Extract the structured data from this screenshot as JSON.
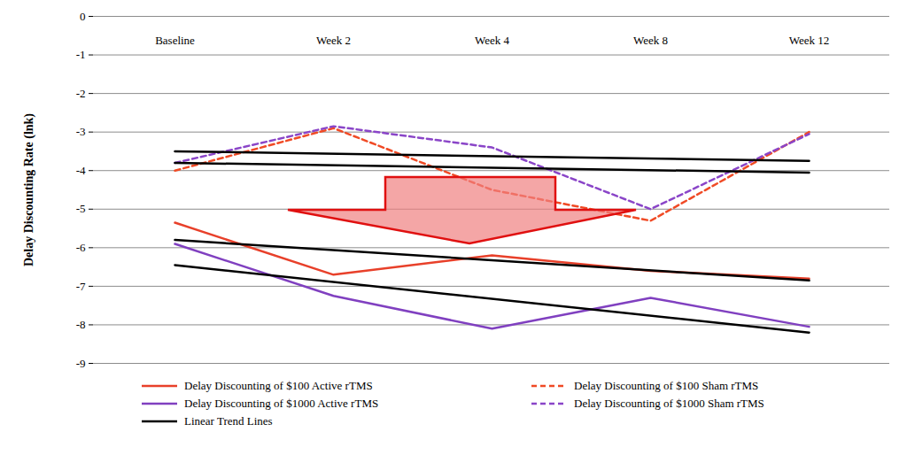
{
  "chart_data": {
    "type": "line",
    "ylabel": "Delay Discounting Rate (lnk)",
    "categories": [
      "Baseline",
      "Week 2",
      "Week 4",
      "Week 8",
      "Week 12"
    ],
    "ylim": [
      -9,
      0
    ],
    "yticks": [
      -9,
      -8,
      -7,
      -6,
      -5,
      -4,
      -3,
      -2,
      -1,
      0
    ],
    "grid": true,
    "legend": "bottom",
    "series": [
      {
        "name": "Delay Discounting of $100 Active rTMS",
        "color": "#e8402a",
        "line_style": "solid",
        "values": [
          -5.35,
          -6.7,
          -6.2,
          -6.6,
          -6.8
        ]
      },
      {
        "name": "Delay Discounting of $100 Sham rTMS",
        "color": "#f04a25",
        "line_style": "dashed",
        "values": [
          -4.0,
          -2.9,
          -4.5,
          -5.3,
          -3.0
        ]
      },
      {
        "name": "Delay Discounting of $1000 Active rTMS",
        "color": "#8040c0",
        "line_style": "solid",
        "values": [
          -5.9,
          -7.25,
          -8.1,
          -7.3,
          -8.05
        ]
      },
      {
        "name": "Delay Discounting of $1000 Sham rTMS",
        "color": "#8a45c8",
        "line_style": "dashed",
        "values": [
          -3.8,
          -2.85,
          -3.4,
          -5.0,
          -3.05
        ]
      },
      {
        "name": "Linear Trend Lines",
        "color": "#000000",
        "line_style": "solid",
        "values": [
          -3.5,
          null,
          null,
          null,
          -3.75
        ]
      },
      {
        "name": "Linear Trend Lines",
        "color": "#000000",
        "line_style": "solid",
        "values": [
          -3.8,
          null,
          null,
          null,
          -4.05
        ]
      },
      {
        "name": "Linear Trend Lines",
        "color": "#000000",
        "line_style": "solid",
        "values": [
          -5.8,
          null,
          null,
          null,
          -6.85
        ]
      },
      {
        "name": "Linear Trend Lines",
        "color": "#000000",
        "line_style": "solid",
        "values": [
          -6.45,
          null,
          null,
          null,
          -8.2
        ]
      }
    ]
  }
}
